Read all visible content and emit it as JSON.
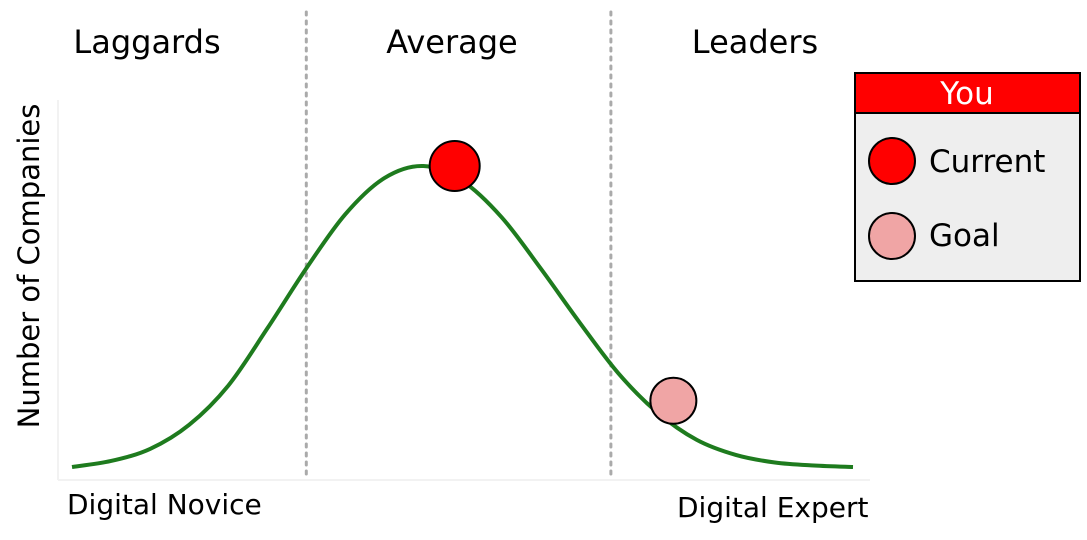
{
  "chart_data": {
    "type": "line",
    "title": "",
    "segments": [
      "Laggards",
      "Average",
      "Leaders"
    ],
    "ylabel": "Number of Companies",
    "x_axis_left_label": "Digital Novice",
    "x_axis_right_label": "Digital Expert",
    "x": [
      0.0,
      0.05,
      0.1,
      0.15,
      0.2,
      0.25,
      0.3,
      0.35,
      0.4,
      0.45,
      0.5,
      0.55,
      0.6,
      0.65,
      0.7,
      0.75,
      0.8,
      0.85,
      0.9,
      0.95,
      1.0
    ],
    "series": [
      {
        "values": [
          0.0,
          0.02,
          0.06,
          0.14,
          0.27,
          0.46,
          0.66,
          0.84,
          0.96,
          1.0,
          0.95,
          0.83,
          0.66,
          0.48,
          0.31,
          0.18,
          0.09,
          0.04,
          0.015,
          0.005,
          0.0
        ],
        "color": "#1e7b1e"
      }
    ],
    "markers": [
      {
        "name": "Current",
        "x": 0.49,
        "y": 1.0,
        "color": "#ff0000"
      },
      {
        "name": "Goal",
        "x": 0.77,
        "y": 0.22,
        "color": "#f0a5a5"
      }
    ],
    "dividers_x": [
      0.3,
      0.69
    ],
    "legend": {
      "title": "You",
      "title_bg": "#ff0000",
      "title_color": "#ffffff",
      "box_bg": "#eeeeee",
      "items": [
        {
          "label": "Current",
          "color": "#ff0000"
        },
        {
          "label": "Goal",
          "color": "#f0a5a5"
        }
      ],
      "placement": "top-right"
    },
    "xlim": [
      0,
      1
    ],
    "ylim": [
      0,
      1
    ],
    "grid": false
  }
}
